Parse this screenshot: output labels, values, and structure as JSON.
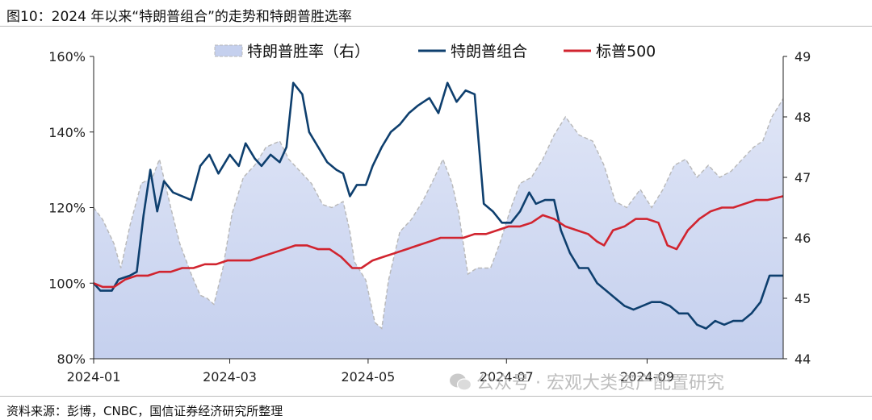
{
  "header": {
    "title": "图10：2024 年以来“特朗普组合”的走势和特朗普胜选率"
  },
  "footer": {
    "source": "资料来源：彭博，CNBC，国信证券经济研究所整理"
  },
  "watermark": {
    "text": "公众号 · 宏观大类资产配置研究"
  },
  "colors": {
    "area": "#c5d0ee",
    "area_edge": "#b8b8b8",
    "portfolio": "#0e3f6e",
    "sp500": "#d1242f"
  },
  "chart_data": {
    "type": "line",
    "x_ticks": [
      "2024-01",
      "2024-03",
      "2024-05",
      "2024-07",
      "2024-09"
    ],
    "x_range": [
      "2024-01-01",
      "2024-10-31"
    ],
    "y_left": {
      "ticks": [
        "80%",
        "100%",
        "120%",
        "140%",
        "160%"
      ],
      "range": [
        80,
        160
      ]
    },
    "y_right": {
      "ticks": [
        "44",
        "45",
        "46",
        "47",
        "48",
        "49"
      ],
      "range": [
        44,
        49
      ]
    },
    "legend": {
      "placement": "top"
    },
    "series": [
      {
        "name": "特朗普胜率（右）",
        "type": "area",
        "axis": "right",
        "points": [
          [
            "2024-01-01",
            46.5
          ],
          [
            "2024-01-05",
            46.3
          ],
          [
            "2024-01-10",
            45.9
          ],
          [
            "2024-01-13",
            45.5
          ],
          [
            "2024-01-17",
            46.2
          ],
          [
            "2024-01-22",
            46.9
          ],
          [
            "2024-01-27",
            47.0
          ],
          [
            "2024-01-30",
            47.3
          ],
          [
            "2024-02-04",
            46.5
          ],
          [
            "2024-02-08",
            45.9
          ],
          [
            "2024-02-13",
            45.4
          ],
          [
            "2024-02-17",
            45.05
          ],
          [
            "2024-02-20",
            45.0
          ],
          [
            "2024-02-23",
            44.9
          ],
          [
            "2024-02-27",
            45.5
          ],
          [
            "2024-03-02",
            46.4
          ],
          [
            "2024-03-07",
            47.0
          ],
          [
            "2024-03-12",
            47.2
          ],
          [
            "2024-03-17",
            47.5
          ],
          [
            "2024-03-23",
            47.6
          ],
          [
            "2024-03-27",
            47.3
          ],
          [
            "2024-04-01",
            47.1
          ],
          [
            "2024-04-06",
            46.9
          ],
          [
            "2024-04-11",
            46.55
          ],
          [
            "2024-04-15",
            46.5
          ],
          [
            "2024-04-20",
            46.6
          ],
          [
            "2024-04-23",
            46.1
          ],
          [
            "2024-04-25",
            45.6
          ],
          [
            "2024-04-30",
            45.3
          ],
          [
            "2024-05-04",
            44.6
          ],
          [
            "2024-05-07",
            44.5
          ],
          [
            "2024-05-10",
            45.3
          ],
          [
            "2024-05-15",
            46.1
          ],
          [
            "2024-05-20",
            46.3
          ],
          [
            "2024-05-25",
            46.6
          ],
          [
            "2024-05-29",
            46.9
          ],
          [
            "2024-06-03",
            47.3
          ],
          [
            "2024-06-07",
            46.9
          ],
          [
            "2024-06-10",
            46.4
          ],
          [
            "2024-06-14",
            45.4
          ],
          [
            "2024-06-18",
            45.5
          ],
          [
            "2024-06-24",
            45.5
          ],
          [
            "2024-06-28",
            45.9
          ],
          [
            "2024-07-03",
            46.5
          ],
          [
            "2024-07-07",
            46.9
          ],
          [
            "2024-07-12",
            47.0
          ],
          [
            "2024-07-17",
            47.3
          ],
          [
            "2024-07-22",
            47.7
          ],
          [
            "2024-07-27",
            48.0
          ],
          [
            "2024-08-02",
            47.7
          ],
          [
            "2024-08-08",
            47.6
          ],
          [
            "2024-08-13",
            47.2
          ],
          [
            "2024-08-18",
            46.6
          ],
          [
            "2024-08-23",
            46.5
          ],
          [
            "2024-08-29",
            46.8
          ],
          [
            "2024-09-03",
            46.5
          ],
          [
            "2024-09-08",
            46.8
          ],
          [
            "2024-09-13",
            47.2
          ],
          [
            "2024-09-18",
            47.3
          ],
          [
            "2024-09-23",
            47.0
          ],
          [
            "2024-09-28",
            47.2
          ],
          [
            "2024-10-03",
            47.0
          ],
          [
            "2024-10-08",
            47.1
          ],
          [
            "2024-10-13",
            47.3
          ],
          [
            "2024-10-18",
            47.5
          ],
          [
            "2024-10-22",
            47.6
          ],
          [
            "2024-10-26",
            48.0
          ],
          [
            "2024-10-31",
            48.3
          ]
        ]
      },
      {
        "name": "特朗普组合",
        "type": "line",
        "axis": "left",
        "points": [
          [
            "2024-01-01",
            100
          ],
          [
            "2024-01-04",
            98
          ],
          [
            "2024-01-09",
            98
          ],
          [
            "2024-01-12",
            101
          ],
          [
            "2024-01-17",
            102
          ],
          [
            "2024-01-20",
            103
          ],
          [
            "2024-01-23",
            118
          ],
          [
            "2024-01-26",
            130
          ],
          [
            "2024-01-29",
            119
          ],
          [
            "2024-02-01",
            127
          ],
          [
            "2024-02-05",
            124
          ],
          [
            "2024-02-09",
            123
          ],
          [
            "2024-02-13",
            122
          ],
          [
            "2024-02-17",
            131
          ],
          [
            "2024-02-21",
            134
          ],
          [
            "2024-02-25",
            129
          ],
          [
            "2024-03-01",
            134
          ],
          [
            "2024-03-05",
            131
          ],
          [
            "2024-03-08",
            137
          ],
          [
            "2024-03-12",
            133
          ],
          [
            "2024-03-15",
            131
          ],
          [
            "2024-03-19",
            134
          ],
          [
            "2024-03-23",
            132
          ],
          [
            "2024-03-26",
            136
          ],
          [
            "2024-03-29",
            153
          ],
          [
            "2024-04-02",
            150
          ],
          [
            "2024-04-05",
            140
          ],
          [
            "2024-04-09",
            136
          ],
          [
            "2024-04-13",
            132
          ],
          [
            "2024-04-17",
            130
          ],
          [
            "2024-04-20",
            129
          ],
          [
            "2024-04-23",
            123
          ],
          [
            "2024-04-26",
            126
          ],
          [
            "2024-04-30",
            126
          ],
          [
            "2024-05-03",
            131
          ],
          [
            "2024-05-07",
            136
          ],
          [
            "2024-05-11",
            140
          ],
          [
            "2024-05-15",
            142
          ],
          [
            "2024-05-19",
            145
          ],
          [
            "2024-05-23",
            147
          ],
          [
            "2024-05-28",
            149
          ],
          [
            "2024-06-01",
            145
          ],
          [
            "2024-06-05",
            153
          ],
          [
            "2024-06-09",
            148
          ],
          [
            "2024-06-13",
            151
          ],
          [
            "2024-06-17",
            150
          ],
          [
            "2024-06-21",
            121
          ],
          [
            "2024-06-25",
            119
          ],
          [
            "2024-06-29",
            116
          ],
          [
            "2024-07-03",
            116
          ],
          [
            "2024-07-07",
            119
          ],
          [
            "2024-07-11",
            124
          ],
          [
            "2024-07-14",
            121
          ],
          [
            "2024-07-18",
            122
          ],
          [
            "2024-07-22",
            122
          ],
          [
            "2024-07-25",
            114
          ],
          [
            "2024-07-29",
            108
          ],
          [
            "2024-08-02",
            104
          ],
          [
            "2024-08-06",
            104
          ],
          [
            "2024-08-10",
            100
          ],
          [
            "2024-08-14",
            98
          ],
          [
            "2024-08-18",
            96
          ],
          [
            "2024-08-22",
            94
          ],
          [
            "2024-08-26",
            93
          ],
          [
            "2024-08-30",
            94
          ],
          [
            "2024-09-03",
            95
          ],
          [
            "2024-09-07",
            95
          ],
          [
            "2024-09-11",
            94
          ],
          [
            "2024-09-15",
            92
          ],
          [
            "2024-09-19",
            92
          ],
          [
            "2024-09-23",
            89
          ],
          [
            "2024-09-27",
            88
          ],
          [
            "2024-10-01",
            90
          ],
          [
            "2024-10-05",
            89
          ],
          [
            "2024-10-09",
            90
          ],
          [
            "2024-10-13",
            90
          ],
          [
            "2024-10-17",
            92
          ],
          [
            "2024-10-21",
            95
          ],
          [
            "2024-10-25",
            102
          ],
          [
            "2024-10-31",
            102
          ]
        ]
      },
      {
        "name": "标普500",
        "type": "line",
        "axis": "left",
        "points": [
          [
            "2024-01-01",
            100
          ],
          [
            "2024-01-05",
            99
          ],
          [
            "2024-01-10",
            99
          ],
          [
            "2024-01-15",
            101
          ],
          [
            "2024-01-20",
            102
          ],
          [
            "2024-01-25",
            102
          ],
          [
            "2024-01-30",
            103
          ],
          [
            "2024-02-04",
            103
          ],
          [
            "2024-02-09",
            104
          ],
          [
            "2024-02-14",
            104
          ],
          [
            "2024-02-19",
            105
          ],
          [
            "2024-02-24",
            105
          ],
          [
            "2024-02-29",
            106
          ],
          [
            "2024-03-05",
            106
          ],
          [
            "2024-03-10",
            106
          ],
          [
            "2024-03-15",
            107
          ],
          [
            "2024-03-20",
            108
          ],
          [
            "2024-03-25",
            109
          ],
          [
            "2024-03-30",
            110
          ],
          [
            "2024-04-04",
            110
          ],
          [
            "2024-04-09",
            109
          ],
          [
            "2024-04-14",
            109
          ],
          [
            "2024-04-19",
            107
          ],
          [
            "2024-04-24",
            104
          ],
          [
            "2024-04-28",
            104
          ],
          [
            "2024-05-03",
            106
          ],
          [
            "2024-05-08",
            107
          ],
          [
            "2024-05-13",
            108
          ],
          [
            "2024-05-18",
            109
          ],
          [
            "2024-05-23",
            110
          ],
          [
            "2024-05-28",
            111
          ],
          [
            "2024-06-02",
            112
          ],
          [
            "2024-06-07",
            112
          ],
          [
            "2024-06-12",
            112
          ],
          [
            "2024-06-17",
            113
          ],
          [
            "2024-06-22",
            113
          ],
          [
            "2024-06-27",
            114
          ],
          [
            "2024-07-02",
            115
          ],
          [
            "2024-07-07",
            115
          ],
          [
            "2024-07-12",
            116
          ],
          [
            "2024-07-17",
            118
          ],
          [
            "2024-07-22",
            117
          ],
          [
            "2024-07-27",
            115
          ],
          [
            "2024-08-01",
            114
          ],
          [
            "2024-08-06",
            113
          ],
          [
            "2024-08-10",
            111
          ],
          [
            "2024-08-13",
            110
          ],
          [
            "2024-08-17",
            114
          ],
          [
            "2024-08-22",
            115
          ],
          [
            "2024-08-27",
            117
          ],
          [
            "2024-09-01",
            117
          ],
          [
            "2024-09-06",
            116
          ],
          [
            "2024-09-10",
            110
          ],
          [
            "2024-09-14",
            109
          ],
          [
            "2024-09-19",
            114
          ],
          [
            "2024-09-24",
            117
          ],
          [
            "2024-09-29",
            119
          ],
          [
            "2024-10-04",
            120
          ],
          [
            "2024-10-09",
            120
          ],
          [
            "2024-10-14",
            121
          ],
          [
            "2024-10-19",
            122
          ],
          [
            "2024-10-24",
            122
          ],
          [
            "2024-10-31",
            123
          ]
        ]
      }
    ]
  }
}
